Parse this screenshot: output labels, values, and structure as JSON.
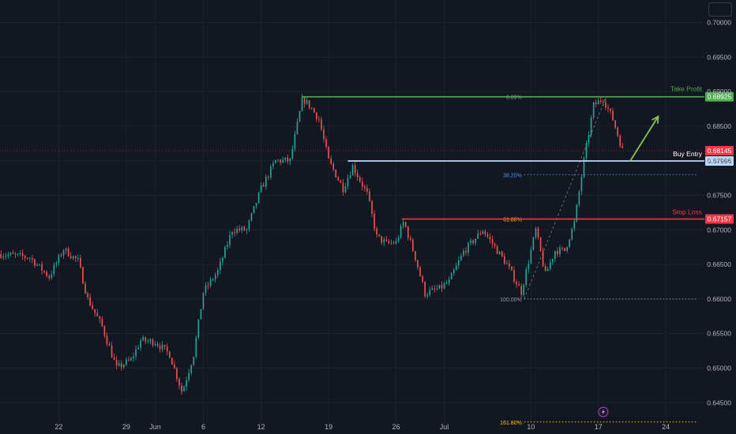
{
  "chart_data": {
    "type": "candlestick",
    "y_ticks": [
      "0.70000",
      "0.69500",
      "0.69000",
      "0.68500",
      "0.68000",
      "0.67500",
      "0.67000",
      "0.66500",
      "0.66000",
      "0.65500",
      "0.65000",
      "0.64500"
    ],
    "y_tick_values": [
      0.7,
      0.695,
      0.69,
      0.685,
      0.68,
      0.675,
      0.67,
      0.665,
      0.66,
      0.655,
      0.65,
      0.645
    ],
    "ylim": [
      0.64195,
      0.70325
    ],
    "x_ticks": [
      "22",
      "29",
      "Jun",
      "6",
      "12",
      "19",
      "26",
      "Jul",
      "10",
      "17",
      "24"
    ],
    "x_tick_days": [
      0,
      7,
      10,
      15,
      21,
      28,
      35,
      40,
      49,
      56,
      63
    ],
    "x_range_days": [
      -6.1,
      67.0
    ],
    "price_path": [
      [
        -6.0,
        0.6665
      ],
      [
        -3.0,
        0.666
      ],
      [
        -1.0,
        0.6632
      ],
      [
        0.5,
        0.6672
      ],
      [
        2.0,
        0.6655
      ],
      [
        3.0,
        0.66
      ],
      [
        4.5,
        0.656
      ],
      [
        6.0,
        0.65
      ],
      [
        7.5,
        0.6512
      ],
      [
        8.5,
        0.654
      ],
      [
        10.0,
        0.6538
      ],
      [
        11.5,
        0.652
      ],
      [
        12.8,
        0.6465
      ],
      [
        14.0,
        0.652
      ],
      [
        15.0,
        0.661
      ],
      [
        16.5,
        0.664
      ],
      [
        18.0,
        0.67
      ],
      [
        19.5,
        0.67
      ],
      [
        21.0,
        0.676
      ],
      [
        22.5,
        0.68
      ],
      [
        24.0,
        0.68
      ],
      [
        25.3,
        0.689
      ],
      [
        26.0,
        0.688
      ],
      [
        27.0,
        0.686
      ],
      [
        28.0,
        0.68
      ],
      [
        29.5,
        0.676
      ],
      [
        30.5,
        0.6792
      ],
      [
        32.0,
        0.6752
      ],
      [
        33.0,
        0.669
      ],
      [
        34.0,
        0.668
      ],
      [
        35.0,
        0.6682
      ],
      [
        35.8,
        0.6712
      ],
      [
        37.0,
        0.666
      ],
      [
        38.0,
        0.6608
      ],
      [
        39.5,
        0.6615
      ],
      [
        40.5,
        0.6625
      ],
      [
        42.0,
        0.6668
      ],
      [
        44.0,
        0.67
      ],
      [
        45.5,
        0.667
      ],
      [
        46.5,
        0.665
      ],
      [
        48.0,
        0.661
      ],
      [
        49.5,
        0.67
      ],
      [
        50.5,
        0.6635
      ],
      [
        51.5,
        0.667
      ],
      [
        52.5,
        0.667
      ],
      [
        53.5,
        0.671
      ],
      [
        54.5,
        0.68
      ],
      [
        55.5,
        0.688
      ],
      [
        56.5,
        0.689
      ],
      [
        57.5,
        0.686
      ],
      [
        58.5,
        0.6815
      ]
    ],
    "levels": {
      "take_profit": {
        "label": "Take Profit",
        "price": "0.68925",
        "value": 0.68925,
        "color": "#4caf50"
      },
      "buy_entry": {
        "label": "Buy Entry",
        "price": "0.67996",
        "value": 0.67996,
        "color": "#bbd9fb"
      },
      "stop_loss": {
        "label": "Stop Loss",
        "price": "0.67157",
        "value": 0.67157,
        "color": "#f23645"
      },
      "current": {
        "price": "0.68145",
        "value": 0.68145,
        "color": "#f23645"
      }
    },
    "fib_levels": [
      {
        "label": "0.00%",
        "value": 0.68925
      },
      {
        "label": "38.20%",
        "value": 0.67798
      },
      {
        "label": "61.80%",
        "value": 0.67157
      },
      {
        "label": "100.00%",
        "value": 0.66
      },
      {
        "label": "161.80%",
        "value": 0.6422
      }
    ],
    "colors": {
      "up": "#26a69a",
      "down": "#ef5350",
      "background": "#131722",
      "grid": "#1e222d",
      "axis_text": "#b2b5be",
      "fib_gold": "#f5c518",
      "arrow": "#8bc34a"
    }
  }
}
